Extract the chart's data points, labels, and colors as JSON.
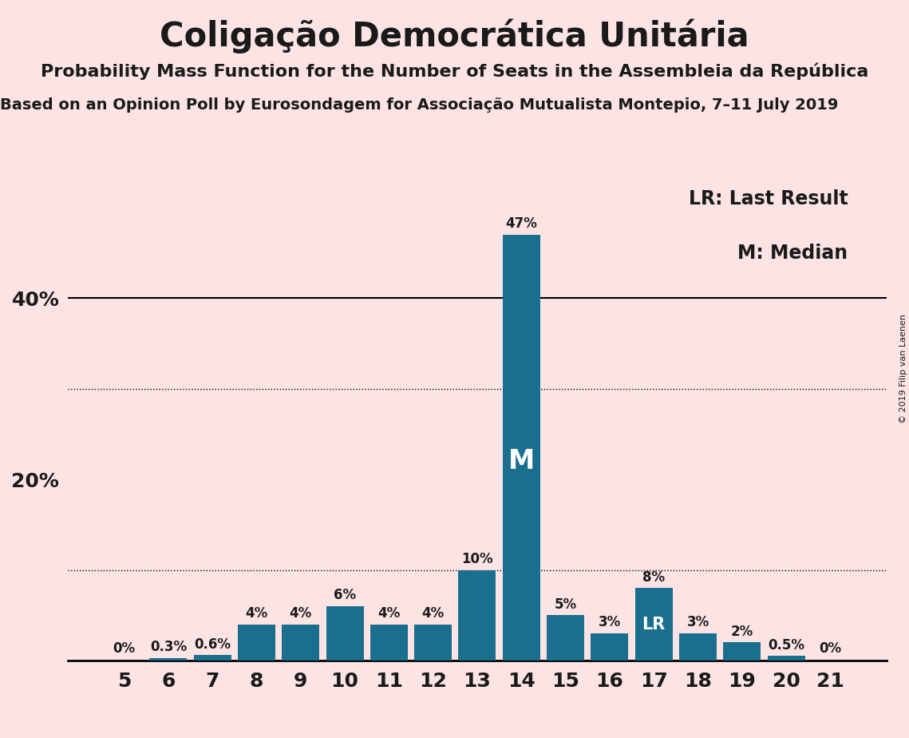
{
  "title": "Coligação Democrática Unitária",
  "subtitle1": "Probability Mass Function for the Number of Seats in the Assembleia da República",
  "subtitle2": "Based on an Opinion Poll by Eurosondagem for Associação Mutualista Montepio, 7–11 July 2019",
  "copyright": "© 2019 Filip van Laenen",
  "categories": [
    5,
    6,
    7,
    8,
    9,
    10,
    11,
    12,
    13,
    14,
    15,
    16,
    17,
    18,
    19,
    20,
    21
  ],
  "values": [
    0.0,
    0.3,
    0.6,
    4.0,
    4.0,
    6.0,
    4.0,
    4.0,
    10.0,
    47.0,
    5.0,
    3.0,
    8.0,
    3.0,
    2.0,
    0.5,
    0.0
  ],
  "labels": [
    "0%",
    "0.3%",
    "0.6%",
    "4%",
    "4%",
    "6%",
    "4%",
    "4%",
    "10%",
    "47%",
    "5%",
    "3%",
    "8%",
    "3%",
    "2%",
    "0.5%",
    "0%"
  ],
  "bar_color": "#1a6e8e",
  "background_color": "#fce4e4",
  "text_color": "#1a1a1a",
  "median_bar": 14,
  "lr_bar": 17,
  "legend_lr": "LR: Last Result",
  "legend_m": "M: Median",
  "solid_gridlines": [
    40
  ],
  "dotted_gridlines": [
    10,
    30
  ],
  "ylim": [
    0,
    55
  ],
  "yticks": [
    20,
    40
  ],
  "ytick_labels": [
    "20%",
    "40%"
  ],
  "label_fontsize": 12,
  "tick_fontsize": 18,
  "title_fontsize": 30,
  "subtitle1_fontsize": 16,
  "subtitle2_fontsize": 14,
  "legend_fontsize": 17,
  "m_fontsize": 24,
  "lr_fontsize": 15
}
